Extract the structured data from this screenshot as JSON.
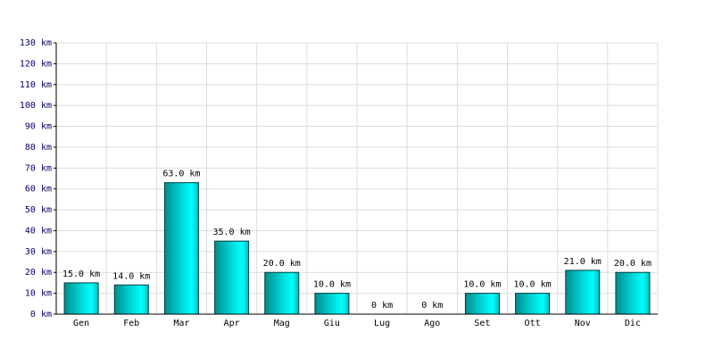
{
  "chart_data": {
    "type": "bar",
    "categories": [
      "Gen",
      "Feb",
      "Mar",
      "Apr",
      "Mag",
      "Giu",
      "Lug",
      "Ago",
      "Set",
      "Ott",
      "Nov",
      "Dic"
    ],
    "values": [
      15,
      14,
      63,
      35,
      20,
      10,
      0,
      0,
      10,
      10,
      21,
      20
    ],
    "value_labels": [
      "15.0 km",
      "14.0 km",
      "63.0 km",
      "35.0 km",
      "20.0 km",
      "10.0 km",
      "0 km",
      "0 km",
      "10.0 km",
      "10.0 km",
      "21.0 km",
      "20.0 km"
    ],
    "color": "#00d8d8",
    "ylim": [
      0,
      130
    ],
    "yticks": [
      {
        "value": 0,
        "label": "0 km"
      },
      {
        "value": 10,
        "label": "10 km"
      },
      {
        "value": 20,
        "label": "20 km"
      },
      {
        "value": 30,
        "label": "30 km"
      },
      {
        "value": 40,
        "label": "40 km"
      },
      {
        "value": 50,
        "label": "50 km"
      },
      {
        "value": 60,
        "label": "60 km"
      },
      {
        "value": 70,
        "label": "70 km"
      },
      {
        "value": 80,
        "label": "80 km"
      },
      {
        "value": 90,
        "label": "90 km"
      },
      {
        "value": 100,
        "label": "100 km"
      },
      {
        "value": 110,
        "label": "110 km"
      },
      {
        "value": 120,
        "label": "120 km"
      },
      {
        "value": 130,
        "label": "130 km"
      }
    ],
    "grid": true
  }
}
